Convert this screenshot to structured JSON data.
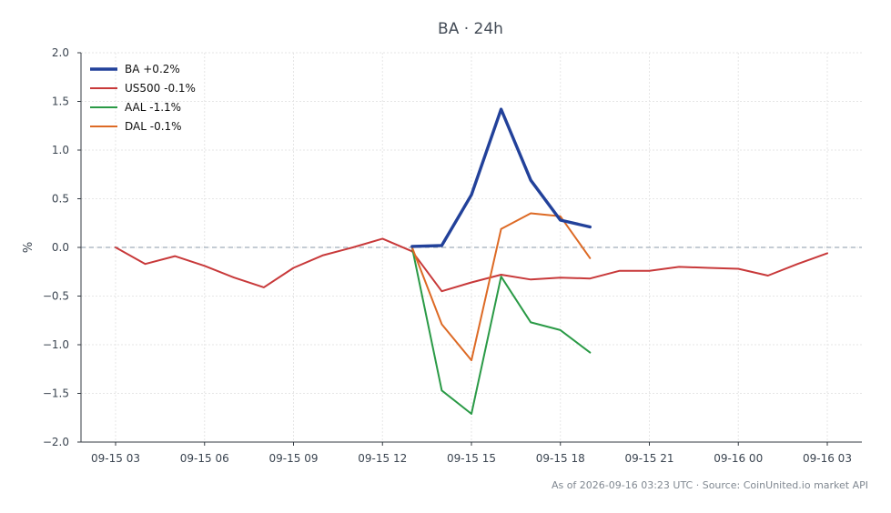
{
  "chart_data": {
    "type": "line",
    "title": "BA · 24h",
    "xlabel": "",
    "ylabel": "%",
    "ylim": [
      -2.0,
      2.0
    ],
    "yticks": [
      2.0,
      1.5,
      1.0,
      0.5,
      0.0,
      -0.5,
      -1.0,
      -1.5,
      -2.0
    ],
    "ytick_labels": [
      "2.0",
      "1.5",
      "1.0",
      "0.5",
      "0.0",
      "−0.5",
      "−1.0",
      "−1.5",
      "−2.0"
    ],
    "xlim": [
      "2026-09-15 01:50",
      "2026-09-16 04:10"
    ],
    "xticks": [
      "2026-09-15 03:00",
      "2026-09-15 06:00",
      "2026-09-15 09:00",
      "2026-09-15 12:00",
      "2026-09-15 15:00",
      "2026-09-15 18:00",
      "2026-09-15 21:00",
      "2026-09-16 00:00",
      "2026-09-16 03:00"
    ],
    "xtick_labels": [
      "09-15 03",
      "09-15 06",
      "09-15 09",
      "09-15 12",
      "09-15 15",
      "09-15 18",
      "09-15 21",
      "09-16 00",
      "09-16 03"
    ],
    "grid": true,
    "zero_line": true,
    "legend_position": "top-left",
    "series": [
      {
        "name": "BA +0.2%",
        "color": "#22419a",
        "bold": true,
        "x": [
          "2026-09-15 13:00",
          "2026-09-15 14:00",
          "2026-09-15 15:00",
          "2026-09-15 16:00",
          "2026-09-15 17:00",
          "2026-09-15 18:00",
          "2026-09-15 19:00"
        ],
        "y": [
          0.01,
          0.02,
          0.54,
          1.42,
          0.69,
          0.28,
          0.21
        ]
      },
      {
        "name": "US500 -0.1%",
        "color": "#c8393a",
        "bold": false,
        "x": [
          "2026-09-15 03:00",
          "2026-09-15 04:00",
          "2026-09-15 05:00",
          "2026-09-15 06:00",
          "2026-09-15 07:00",
          "2026-09-15 08:00",
          "2026-09-15 09:00",
          "2026-09-15 10:00",
          "2026-09-15 11:00",
          "2026-09-15 12:00",
          "2026-09-15 13:00",
          "2026-09-15 14:00",
          "2026-09-15 15:00",
          "2026-09-15 16:00",
          "2026-09-15 17:00",
          "2026-09-15 18:00",
          "2026-09-15 19:00",
          "2026-09-15 20:00",
          "2026-09-15 21:00",
          "2026-09-15 22:00",
          "2026-09-15 23:00",
          "2026-09-16 00:00",
          "2026-09-16 01:00",
          "2026-09-16 02:00",
          "2026-09-16 03:00"
        ],
        "y": [
          0.0,
          -0.17,
          -0.09,
          -0.19,
          -0.31,
          -0.41,
          -0.21,
          -0.08,
          0.0,
          0.09,
          -0.04,
          -0.45,
          -0.36,
          -0.28,
          -0.33,
          -0.31,
          -0.32,
          -0.24,
          -0.24,
          -0.2,
          -0.21,
          -0.22,
          -0.29,
          -0.17,
          -0.06
        ]
      },
      {
        "name": "AAL -1.1%",
        "color": "#2a9a46",
        "bold": false,
        "x": [
          "2026-09-15 13:00",
          "2026-09-15 14:00",
          "2026-09-15 15:00",
          "2026-09-15 16:00",
          "2026-09-15 17:00",
          "2026-09-15 18:00",
          "2026-09-15 19:00"
        ],
        "y": [
          0.0,
          -1.47,
          -1.71,
          -0.3,
          -0.77,
          -0.85,
          -1.08
        ]
      },
      {
        "name": "DAL -0.1%",
        "color": "#dd6a25",
        "bold": false,
        "x": [
          "2026-09-15 13:00",
          "2026-09-15 14:00",
          "2026-09-15 15:00",
          "2026-09-15 16:00",
          "2026-09-15 17:00",
          "2026-09-15 18:00",
          "2026-09-15 19:00"
        ],
        "y": [
          0.0,
          -0.79,
          -1.16,
          0.19,
          0.35,
          0.32,
          -0.11
        ]
      }
    ],
    "footer": "As of 2026-09-16 03:23 UTC · Source: CoinUnited.io market API"
  }
}
